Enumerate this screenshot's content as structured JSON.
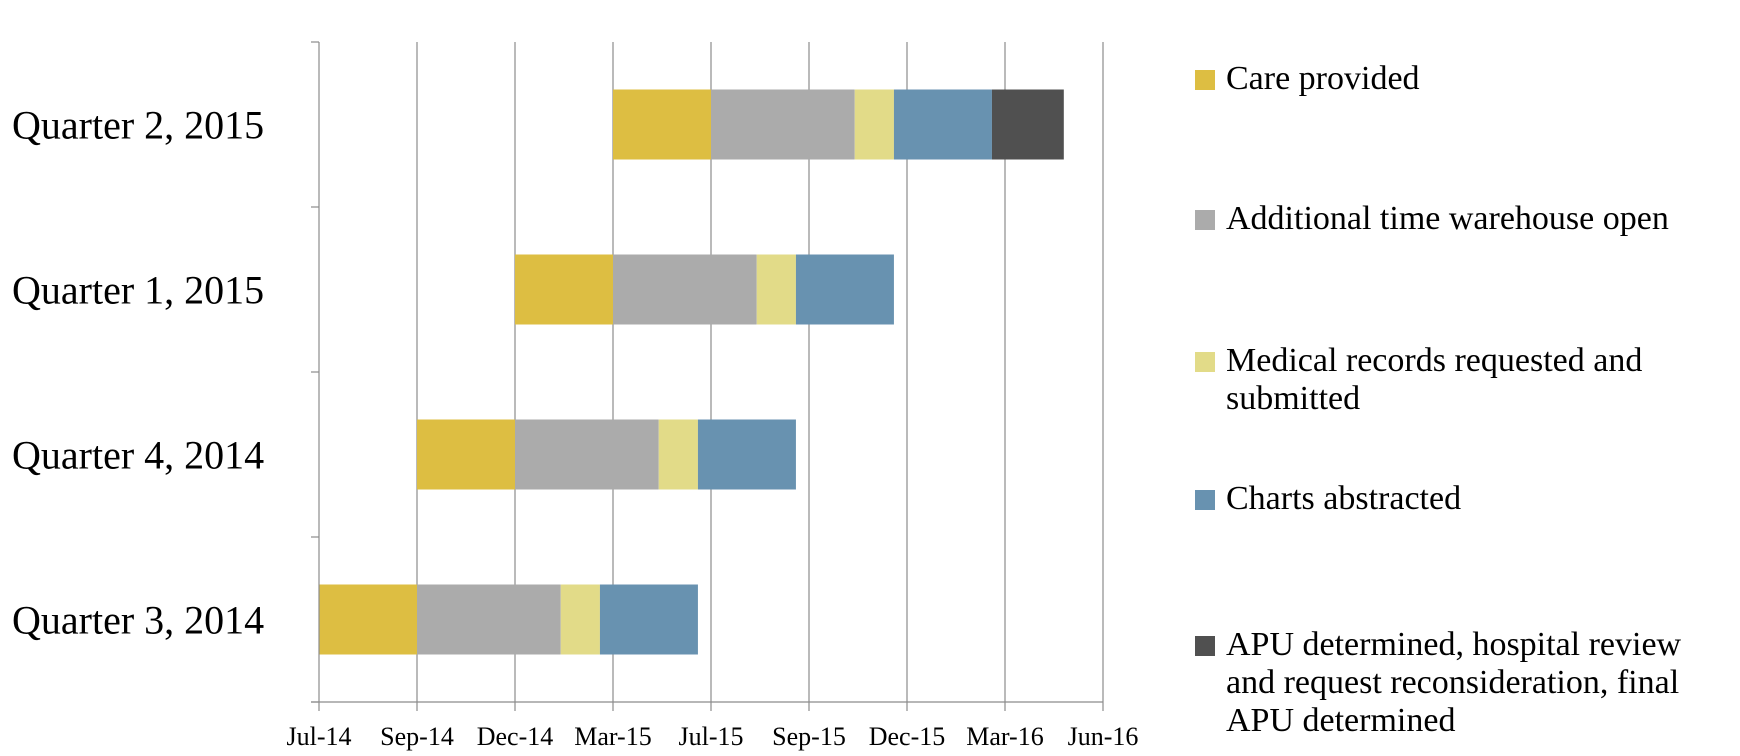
{
  "chart_data": {
    "type": "bar",
    "orientation": "horizontal",
    "stacked": true,
    "categories": [
      "Quarter 3, 2014",
      "Quarter 4, 2014",
      "Quarter 1, 2015",
      "Quarter 2, 2015"
    ],
    "x_ticks": [
      "Jul-14",
      "Sep-14",
      "Dec-14",
      "Mar-15",
      "Jul-15",
      "Sep-15",
      "Dec-15",
      "Mar-16",
      "Jun-16"
    ],
    "x_tick_months": [
      0,
      3,
      6,
      9,
      12,
      15,
      18,
      21,
      24
    ],
    "xlim": [
      0,
      24
    ],
    "x_unit": "months from Jul-14",
    "grid": true,
    "legend_position": "right",
    "series": [
      {
        "name": "Care provided",
        "color": "#DDBE42",
        "starts": [
          0,
          3,
          6,
          9
        ],
        "durations": [
          3,
          3,
          3,
          3
        ]
      },
      {
        "name": "Additional time warehouse open",
        "color": "#ABABAB",
        "starts": [
          3,
          6,
          9,
          12
        ],
        "durations": [
          4.4,
          4.4,
          4.4,
          4.4
        ]
      },
      {
        "name": "Medical records requested and submitted",
        "color": "#E2DB88",
        "starts": [
          7.4,
          10.4,
          13.4,
          16.4
        ],
        "durations": [
          1.2,
          1.2,
          1.2,
          1.2
        ]
      },
      {
        "name": "Charts abstracted",
        "color": "#6892B0",
        "starts": [
          8.6,
          11.6,
          14.6,
          17.6
        ],
        "durations": [
          3,
          3,
          3,
          3
        ]
      },
      {
        "name": "APU determined, hospital review and request reconsideration, final APU determined",
        "color": "#505050",
        "starts": [
          null,
          null,
          null,
          20.6
        ],
        "durations": [
          null,
          null,
          null,
          2.2
        ]
      }
    ]
  }
}
